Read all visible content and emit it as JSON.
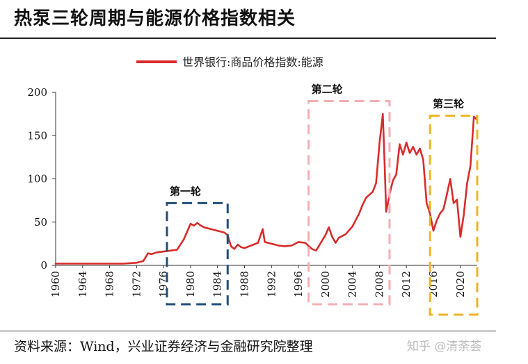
{
  "title": "热泵三轮周期与能源价格指数相关",
  "source": "资料来源：Wind，兴业证券经济与金融研究院整理",
  "watermark": "知乎 @清荼荟",
  "chart_data": {
    "type": "line",
    "title": "",
    "xlabel": "",
    "ylabel": "",
    "xlim": [
      1960,
      2022.5
    ],
    "ylim": [
      0,
      200
    ],
    "yticks": [
      0,
      50,
      100,
      150,
      200
    ],
    "xticks": [
      1960,
      1964,
      1968,
      1972,
      1976,
      1980,
      1984,
      1988,
      1992,
      1996,
      2000,
      2004,
      2008,
      2012,
      2016,
      2020
    ],
    "legend": {
      "position": "top-center"
    },
    "grid": false,
    "series": [
      {
        "name": "世界银行:商品价格指数:能源",
        "color": "#d92b2b",
        "points": [
          [
            1960,
            2
          ],
          [
            1962,
            2
          ],
          [
            1964,
            2
          ],
          [
            1966,
            2
          ],
          [
            1968,
            2
          ],
          [
            1970,
            2
          ],
          [
            1972,
            3
          ],
          [
            1973,
            5
          ],
          [
            1973.7,
            14
          ],
          [
            1974.2,
            13
          ],
          [
            1975,
            15
          ],
          [
            1976,
            16
          ],
          [
            1977,
            17
          ],
          [
            1978,
            18
          ],
          [
            1979,
            30
          ],
          [
            1980,
            48
          ],
          [
            1980.5,
            46
          ],
          [
            1981,
            49
          ],
          [
            1981.5,
            46
          ],
          [
            1982,
            44
          ],
          [
            1983,
            42
          ],
          [
            1984,
            40
          ],
          [
            1985,
            38
          ],
          [
            1985.5,
            35
          ],
          [
            1986,
            22
          ],
          [
            1986.5,
            19
          ],
          [
            1987,
            24
          ],
          [
            1987.5,
            21
          ],
          [
            1988,
            20
          ],
          [
            1989,
            23
          ],
          [
            1990,
            26
          ],
          [
            1990.7,
            42
          ],
          [
            1991,
            27
          ],
          [
            1992,
            25
          ],
          [
            1993,
            23
          ],
          [
            1994,
            22
          ],
          [
            1995,
            23
          ],
          [
            1996,
            27
          ],
          [
            1997,
            26
          ],
          [
            1998,
            19
          ],
          [
            1998.6,
            17
          ],
          [
            1999,
            22
          ],
          [
            2000,
            35
          ],
          [
            2000.5,
            44
          ],
          [
            2001,
            33
          ],
          [
            2001.5,
            26
          ],
          [
            2002,
            32
          ],
          [
            2003,
            36
          ],
          [
            2004,
            45
          ],
          [
            2005,
            60
          ],
          [
            2005.5,
            70
          ],
          [
            2006,
            78
          ],
          [
            2007,
            85
          ],
          [
            2007.5,
            95
          ],
          [
            2008,
            140
          ],
          [
            2008.5,
            175
          ],
          [
            2008.8,
            110
          ],
          [
            2009,
            62
          ],
          [
            2009.5,
            82
          ],
          [
            2010,
            98
          ],
          [
            2010.5,
            105
          ],
          [
            2011,
            140
          ],
          [
            2011.5,
            128
          ],
          [
            2012,
            142
          ],
          [
            2012.5,
            130
          ],
          [
            2013,
            137
          ],
          [
            2013.5,
            128
          ],
          [
            2014,
            135
          ],
          [
            2014.5,
            122
          ],
          [
            2015,
            72
          ],
          [
            2015.5,
            60
          ],
          [
            2016,
            40
          ],
          [
            2016.5,
            52
          ],
          [
            2017,
            60
          ],
          [
            2017.5,
            65
          ],
          [
            2018,
            82
          ],
          [
            2018.5,
            100
          ],
          [
            2019,
            72
          ],
          [
            2019.5,
            76
          ],
          [
            2020,
            33
          ],
          [
            2020.5,
            58
          ],
          [
            2021,
            95
          ],
          [
            2021.5,
            115
          ],
          [
            2022,
            172
          ],
          [
            2022.5,
            168
          ]
        ]
      }
    ],
    "annotations": [
      {
        "label": "第一轮",
        "x0": 1976.5,
        "x1": 1985.5,
        "y0": -45,
        "y1": 72,
        "color": "#1f4e79"
      },
      {
        "label": "第二轮",
        "x0": 1997.5,
        "x1": 2009.5,
        "y0": -45,
        "y1": 190,
        "color": "#f4aeb4"
      },
      {
        "label": "第三轮",
        "x0": 2015.5,
        "x1": 2022.5,
        "y0": -57,
        "y1": 173,
        "color": "#f0b323"
      }
    ]
  }
}
